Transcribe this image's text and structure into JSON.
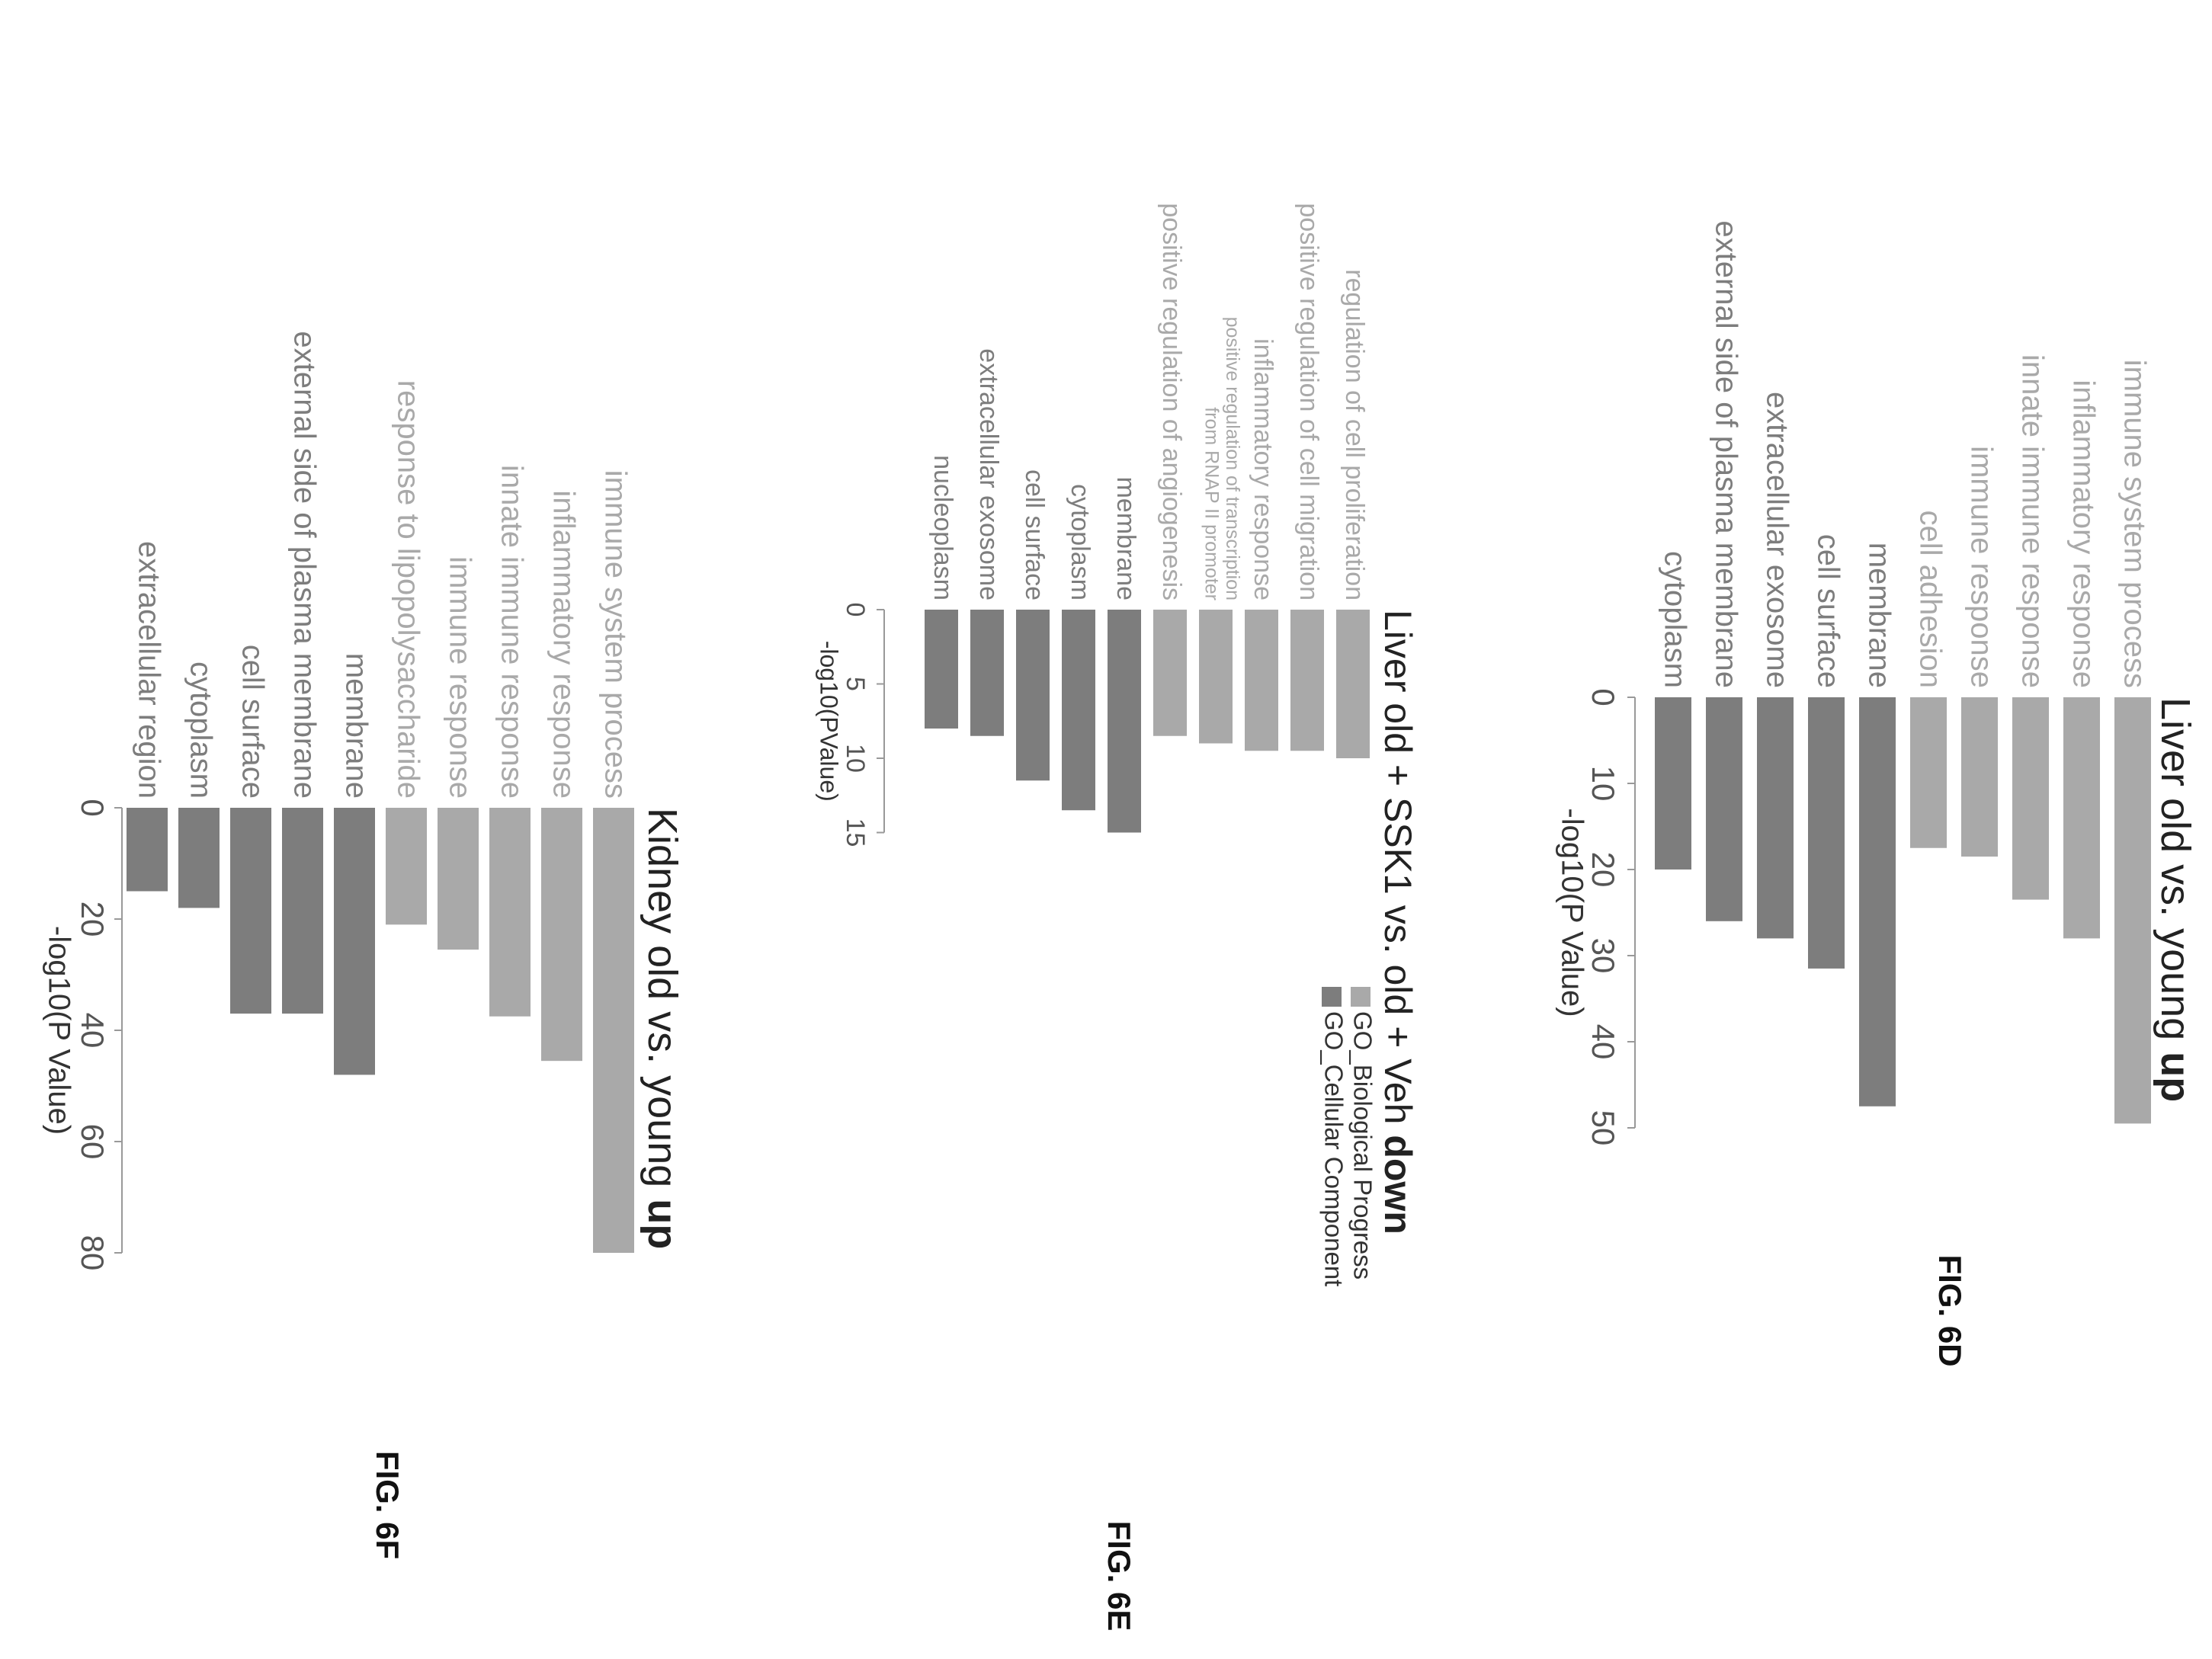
{
  "figures": [
    {
      "fig_label": "FIG. 6D",
      "title_main": "Liver old vs. young",
      "title_bold": "up",
      "xlabel": "-log10(P Value)"
    },
    {
      "fig_label": "FIG. 6E",
      "title_main": "Liver old + SSK1 vs. old + Veh",
      "title_bold": "down",
      "xlabel": "-log10(PValue)"
    },
    {
      "fig_label": "FIG. 6F",
      "title_main": "Kidney old vs. young",
      "title_bold": "up",
      "xlabel": "-log10(P Value)"
    }
  ],
  "legend": {
    "items": [
      {
        "label": "GO_Biological Progress",
        "color": "#a9a9a9"
      },
      {
        "label": "GO_Cellular Component",
        "color": "#7d7d7d"
      }
    ]
  },
  "chart_data": [
    {
      "type": "bar",
      "title": "Liver old vs. young up",
      "xlabel": "-log10(P Value)",
      "xlim": [
        0,
        50
      ],
      "ticks": [
        0,
        10,
        20,
        30,
        40,
        50
      ],
      "categories": [
        "immune system process",
        "inflammatory response",
        "innate immune response",
        "immune response",
        "cell adhesion",
        "membrane",
        "cell surface",
        "extracellular exosome",
        "external side of plasma membrane",
        "cytoplasm"
      ],
      "values": [
        49.5,
        28,
        23.5,
        18.5,
        17.5,
        47.5,
        31.5,
        28,
        26,
        20
      ],
      "groups": [
        "GO_Biological Progress",
        "GO_Biological Progress",
        "GO_Biological Progress",
        "GO_Biological Progress",
        "GO_Biological Progress",
        "GO_Cellular Component",
        "GO_Cellular Component",
        "GO_Cellular Component",
        "GO_Cellular Component",
        "GO_Cellular Component"
      ]
    },
    {
      "type": "bar",
      "title": "Liver old + SSK1 vs. old + Veh down",
      "xlabel": "-log10(PValue)",
      "xlim": [
        0,
        15
      ],
      "ticks": [
        0,
        5,
        10,
        15
      ],
      "categories": [
        "regulation of cell proliferation",
        "positive regulation of cell migration",
        "inflammatory response",
        "positive regulation of transcription from RNAP II promoter",
        "positive regulation of angiogenesis",
        "membrane",
        "cytoplasm",
        "cell surface",
        "extracellular exosome",
        "nucleoplasm"
      ],
      "values": [
        10,
        9.5,
        9.5,
        9,
        8.5,
        15,
        13.5,
        11.5,
        8.5,
        8
      ],
      "groups": [
        "GO_Biological Progress",
        "GO_Biological Progress",
        "GO_Biological Progress",
        "GO_Biological Progress",
        "GO_Biological Progress",
        "GO_Cellular Component",
        "GO_Cellular Component",
        "GO_Cellular Component",
        "GO_Cellular Component",
        "GO_Cellular Component"
      ]
    },
    {
      "type": "bar",
      "title": "Kidney old vs. young up",
      "xlabel": "-log10(P Value)",
      "xlim": [
        0,
        80
      ],
      "ticks": [
        0,
        20,
        40,
        60,
        80
      ],
      "categories": [
        "immune system process",
        "inflammatory response",
        "innate immune response",
        "immune response",
        "response to lipopolysaccharide",
        "membrane",
        "external side of plasma membrane",
        "cell surface",
        "cytoplasm",
        "extracellular region"
      ],
      "values": [
        80,
        45.5,
        37.5,
        25.5,
        21,
        48,
        37,
        37,
        18,
        15
      ],
      "groups": [
        "GO_Biological Progress",
        "GO_Biological Progress",
        "GO_Biological Progress",
        "GO_Biological Progress",
        "GO_Biological Progress",
        "GO_Cellular Component",
        "GO_Cellular Component",
        "GO_Cellular Component",
        "GO_Cellular Component",
        "GO_Cellular Component"
      ]
    }
  ]
}
